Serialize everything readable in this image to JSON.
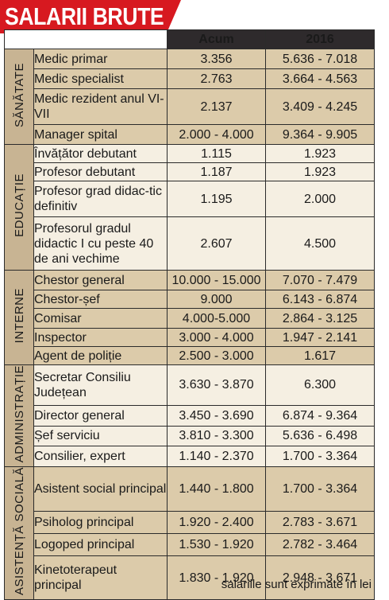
{
  "title": "SALARII BRUTE",
  "headers": {
    "col1": "Acum",
    "col2": "2016"
  },
  "categories": [
    {
      "label": "SĂNĂTATE",
      "rows": [
        {
          "name": "Medic primar",
          "acum": "3.356",
          "y2016": "5.636 - 7.018",
          "h": 24,
          "shade": "dark"
        },
        {
          "name": "Medic specialist",
          "acum": "2.763",
          "y2016": "3.664 - 4.563",
          "h": 24,
          "shade": "dark"
        },
        {
          "name": "Medic rezident anul VI-VII",
          "acum": "2.137",
          "y2016": "3.409 - 4.245",
          "h": 44,
          "shade": "dark"
        },
        {
          "name": "Manager spital",
          "acum": "2.000 - 4.000",
          "y2016": "9.364 - 9.905",
          "h": 24,
          "shade": "dark"
        }
      ]
    },
    {
      "label": "EDUCAȚIE",
      "rows": [
        {
          "name": "Învățător debutant",
          "acum": "1.115",
          "y2016": "1.923",
          "h": 22,
          "shade": "light"
        },
        {
          "name": "Profesor debutant",
          "acum": "1.187",
          "y2016": "1.923",
          "h": 22,
          "shade": "light"
        },
        {
          "name": "Profesor grad didac-tic definitiv",
          "acum": "1.195",
          "y2016": "2.000",
          "h": 44,
          "shade": "light"
        },
        {
          "name": "Profesorul gradul didactic I cu peste 40 de ani vechime",
          "acum": "2.607",
          "y2016": "4.500",
          "h": 66,
          "shade": "light"
        }
      ]
    },
    {
      "label": "INTERNE",
      "rows": [
        {
          "name": "Chestor general",
          "acum": "10.000 - 15.000",
          "y2016": "7.070 - 7.479",
          "h": 24,
          "shade": "dark"
        },
        {
          "name": "Chestor-șef",
          "acum": "9.000",
          "y2016": "6.143 - 6.874",
          "h": 22,
          "shade": "dark"
        },
        {
          "name": "Comisar",
          "acum": "4.000-5.000",
          "y2016": "2.864 - 3.125",
          "h": 24,
          "shade": "dark"
        },
        {
          "name": "Inspector",
          "acum": "3.000 - 4.000",
          "y2016": "1.947 - 2.141",
          "h": 22,
          "shade": "dark"
        },
        {
          "name": "Agent de poliție",
          "acum": "2.500 - 3.000",
          "y2016": "1.617",
          "h": 22,
          "shade": "dark"
        }
      ]
    },
    {
      "label": "ADMINISTRAȚIE",
      "rows": [
        {
          "name": "Secretar Consiliu Județean",
          "acum": "3.630 - 3.870",
          "y2016": "6.300",
          "h": 44,
          "shade": "light"
        },
        {
          "name": "Director general",
          "acum": "3.450 - 3.690",
          "y2016": "6.874 - 9.364",
          "h": 22,
          "shade": "light"
        },
        {
          "name": "Șef serviciu",
          "acum": "3.810 - 3.300",
          "y2016": "5.636 - 6.498",
          "h": 22,
          "shade": "light"
        },
        {
          "name": "Consilier, expert",
          "acum": "1.140 - 2.370",
          "y2016": "1.700 - 3.364",
          "h": 22,
          "shade": "light"
        }
      ]
    },
    {
      "label": "ASISTENȚĂ SOCIALĂ",
      "rows": [
        {
          "name": "Asistent social principal",
          "acum": "1.440 - 1.800",
          "y2016": "1.700 - 3.364",
          "h": 44,
          "shade": "dark"
        },
        {
          "name": "Psiholog principal",
          "acum": "1.920 - 2.400",
          "y2016": "2.783 - 3.671",
          "h": 22,
          "shade": "dark"
        },
        {
          "name": "Logoped principal",
          "acum": "1.530 - 1.920",
          "y2016": "2.782 - 3.464",
          "h": 22,
          "shade": "dark"
        },
        {
          "name": "Kinetoterapeut principal",
          "acum": "1.830 - 1.920",
          "y2016": "2.948 - 3.671",
          "h": 44,
          "shade": "dark"
        }
      ]
    }
  ],
  "footnote": "salariile sunt exprimate în lei"
}
